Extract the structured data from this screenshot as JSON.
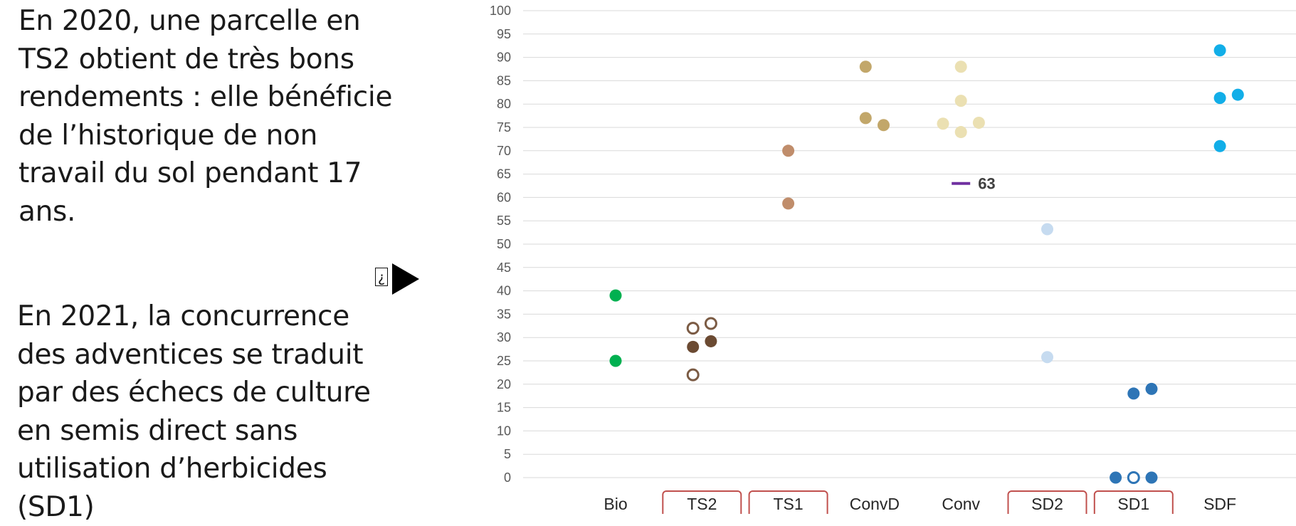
{
  "text": {
    "para_2020": "En 2020, une parcelle en\nTS2 obtient de très bons\nrendements : elle bénéficie\nde l’historique de non\ntravail du sol pendant 17\nans.",
    "para_2021": "En 2021, la concurrence\ndes adventices se traduit\npar des échecs de culture\nen semis direct sans\nutilisation d’herbicides\n(SD1)",
    "glyph": "¿"
  },
  "chart_data": {
    "type": "scatter",
    "categories": [
      "Bio",
      "TS2",
      "TS1",
      "ConvD",
      "Conv",
      "SD2",
      "SD1",
      "SDF"
    ],
    "boxed_categories": [
      "TS2",
      "TS1",
      "SD2",
      "SD1"
    ],
    "ylim": [
      0,
      100
    ],
    "yticks": [
      0,
      5,
      10,
      15,
      20,
      25,
      30,
      35,
      40,
      45,
      50,
      55,
      60,
      65,
      70,
      75,
      80,
      85,
      90,
      95,
      100
    ],
    "grid": true,
    "points": [
      {
        "category": "Bio",
        "offset": 0,
        "y": 39,
        "color": "#00b050",
        "filled": true
      },
      {
        "category": "Bio",
        "offset": 0,
        "y": 25,
        "color": "#00b050",
        "filled": true
      },
      {
        "category": "TS2",
        "offset": -0.2,
        "y": 32,
        "color": "#7b5b44",
        "filled": false
      },
      {
        "category": "TS2",
        "offset": 0.2,
        "y": 33,
        "color": "#7b5b44",
        "filled": false
      },
      {
        "category": "TS2",
        "offset": -0.2,
        "y": 28,
        "color": "#6b4a32",
        "filled": true
      },
      {
        "category": "TS2",
        "offset": 0.2,
        "y": 29.2,
        "color": "#6b4a32",
        "filled": true
      },
      {
        "category": "TS2",
        "offset": -0.2,
        "y": 22,
        "color": "#7b5b44",
        "filled": false
      },
      {
        "category": "TS1",
        "offset": 0,
        "y": 70,
        "color": "#c08d6b",
        "filled": true
      },
      {
        "category": "TS1",
        "offset": 0,
        "y": 58.7,
        "color": "#c08d6b",
        "filled": true
      },
      {
        "category": "ConvD",
        "offset": -0.2,
        "y": 88,
        "color": "#c2a76a",
        "filled": true
      },
      {
        "category": "ConvD",
        "offset": -0.2,
        "y": 77,
        "color": "#c2a76a",
        "filled": true
      },
      {
        "category": "ConvD",
        "offset": 0.2,
        "y": 75.5,
        "color": "#c2a76a",
        "filled": true
      },
      {
        "category": "Conv",
        "offset": 0,
        "y": 88,
        "color": "#ebe0b2",
        "filled": true
      },
      {
        "category": "Conv",
        "offset": 0,
        "y": 80.7,
        "color": "#ebe0b2",
        "filled": true
      },
      {
        "category": "Conv",
        "offset": -0.4,
        "y": 75.8,
        "color": "#ebe0b2",
        "filled": true
      },
      {
        "category": "Conv",
        "offset": 0.4,
        "y": 76,
        "color": "#ebe0b2",
        "filled": true
      },
      {
        "category": "Conv",
        "offset": 0,
        "y": 74,
        "color": "#ebe0b2",
        "filled": true
      },
      {
        "category": "SD2",
        "offset": 0,
        "y": 53.2,
        "color": "#c6dbf0",
        "filled": true
      },
      {
        "category": "SD2",
        "offset": 0,
        "y": 25.8,
        "color": "#c6dbf0",
        "filled": true
      },
      {
        "category": "SD1",
        "offset": 0,
        "y": 18,
        "color": "#2e75b6",
        "filled": true
      },
      {
        "category": "SD1",
        "offset": 0.4,
        "y": 19,
        "color": "#2e75b6",
        "filled": true
      },
      {
        "category": "SD1",
        "offset": -0.4,
        "y": 0,
        "color": "#2e75b6",
        "filled": true
      },
      {
        "category": "SD1",
        "offset": 0,
        "y": 0,
        "color": "#2e75b6",
        "filled": false
      },
      {
        "category": "SD1",
        "offset": 0.4,
        "y": 0,
        "color": "#2e75b6",
        "filled": true
      },
      {
        "category": "SDF",
        "offset": 0,
        "y": 91.5,
        "color": "#12aee8",
        "filled": true
      },
      {
        "category": "SDF",
        "offset": 0,
        "y": 81.3,
        "color": "#12aee8",
        "filled": true
      },
      {
        "category": "SDF",
        "offset": 0.4,
        "y": 82,
        "color": "#12aee8",
        "filled": true
      },
      {
        "category": "SDF",
        "offset": 0,
        "y": 71,
        "color": "#12aee8",
        "filled": true
      }
    ],
    "annotations": [
      {
        "category": "Conv",
        "y": 63,
        "label": "63",
        "color": "#7030a0"
      }
    ],
    "colors": {
      "grid": "#d9d9d9",
      "tick_text": "#595959",
      "box": "#c0504d",
      "axis_label": "#262626"
    }
  }
}
